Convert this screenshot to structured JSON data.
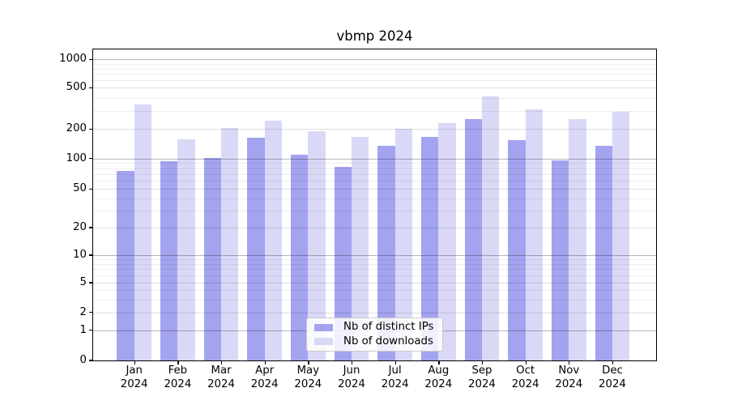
{
  "chart_data": {
    "type": "bar",
    "title": "vbmp 2024",
    "categories": [
      "Jan",
      "Feb",
      "Mar",
      "Apr",
      "May",
      "Jun",
      "Jul",
      "Aug",
      "Sep",
      "Oct",
      "Nov",
      "Dec"
    ],
    "category_year_label": "2024",
    "series": [
      {
        "name": "Nb of distinct IPs",
        "color": "#a3a3f0",
        "values": [
          75,
          94,
          102,
          163,
          110,
          82,
          135,
          165,
          250,
          155,
          96,
          135
        ]
      },
      {
        "name": "Nb of downloads",
        "color": "#d9d9f7",
        "values": [
          345,
          158,
          204,
          240,
          190,
          166,
          200,
          230,
          410,
          310,
          248,
          295
        ]
      }
    ],
    "y_axis": {
      "scale": "symlog",
      "ticks": [
        0,
        1,
        2,
        5,
        10,
        20,
        50,
        100,
        200,
        500,
        1000
      ],
      "range": [
        0,
        1300
      ]
    },
    "xlabel": "",
    "ylabel": "",
    "grid": "on",
    "legend": {
      "position": "lower center"
    }
  }
}
